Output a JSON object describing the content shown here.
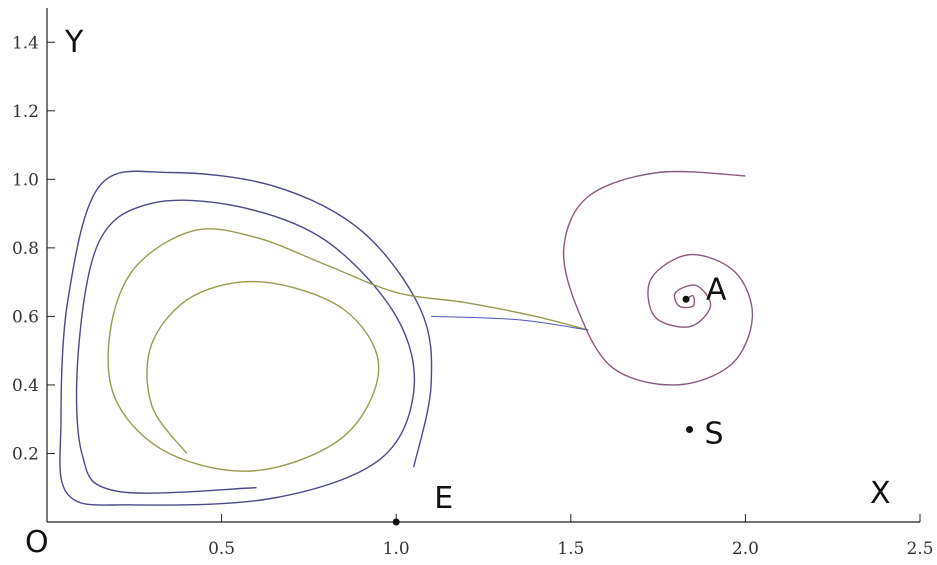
{
  "chart_data": {
    "type": "line",
    "title": "",
    "xlabel": "X",
    "ylabel": "Y",
    "origin_label": "O",
    "xlim": [
      0,
      2.5
    ],
    "ylim": [
      0,
      1.5
    ],
    "x_ticks": [
      {
        "value": 0.5,
        "label": "0.5"
      },
      {
        "value": 1.0,
        "label": "1.0"
      },
      {
        "value": 1.5,
        "label": "1.5"
      },
      {
        "value": 2.0,
        "label": "2.0"
      },
      {
        "value": 2.5,
        "label": "2.5"
      }
    ],
    "y_ticks": [
      {
        "value": 0.2,
        "label": "0.2"
      },
      {
        "value": 0.4,
        "label": "0.4"
      },
      {
        "value": 0.6,
        "label": "0.6"
      },
      {
        "value": 0.8,
        "label": "0.8"
      },
      {
        "value": 1.0,
        "label": "1.0"
      },
      {
        "value": 1.2,
        "label": "1.2"
      },
      {
        "value": 1.4,
        "label": "1.4"
      }
    ],
    "points": [
      {
        "label": "A",
        "x": 1.83,
        "y": 0.65
      },
      {
        "label": "S",
        "x": 1.84,
        "y": 0.27
      },
      {
        "label": "E",
        "x": 1.0,
        "y": 0.0
      }
    ],
    "series": [
      {
        "color": "#4a4a8c",
        "values": [
          [
            1.05,
            0.16
          ],
          [
            1.1,
            0.4
          ],
          [
            1.07,
            0.62
          ],
          [
            0.9,
            0.85
          ],
          [
            0.65,
            0.98
          ],
          [
            0.35,
            1.02
          ],
          [
            0.15,
            0.98
          ],
          [
            0.06,
            0.65
          ],
          [
            0.04,
            0.3
          ],
          [
            0.06,
            0.08
          ],
          [
            0.25,
            0.05
          ],
          [
            0.65,
            0.07
          ],
          [
            0.95,
            0.18
          ],
          [
            1.05,
            0.38
          ],
          [
            1.0,
            0.6
          ],
          [
            0.8,
            0.82
          ],
          [
            0.55,
            0.92
          ],
          [
            0.3,
            0.93
          ],
          [
            0.15,
            0.82
          ],
          [
            0.09,
            0.5
          ],
          [
            0.1,
            0.2
          ],
          [
            0.2,
            0.09
          ],
          [
            0.6,
            0.1
          ]
        ]
      },
      {
        "color": "#9a9a50",
        "values": [
          [
            1.55,
            0.56
          ],
          [
            1.4,
            0.6
          ],
          [
            1.2,
            0.64
          ],
          [
            1.0,
            0.67
          ],
          [
            0.8,
            0.75
          ],
          [
            0.6,
            0.83
          ],
          [
            0.42,
            0.85
          ],
          [
            0.25,
            0.74
          ],
          [
            0.18,
            0.55
          ],
          [
            0.2,
            0.35
          ],
          [
            0.35,
            0.2
          ],
          [
            0.6,
            0.15
          ],
          [
            0.85,
            0.25
          ],
          [
            0.95,
            0.45
          ],
          [
            0.85,
            0.62
          ],
          [
            0.62,
            0.7
          ],
          [
            0.42,
            0.66
          ],
          [
            0.3,
            0.52
          ],
          [
            0.3,
            0.34
          ],
          [
            0.4,
            0.2
          ]
        ]
      },
      {
        "color": "#8a5a7e",
        "values": [
          [
            2.0,
            1.01
          ],
          [
            1.75,
            1.02
          ],
          [
            1.55,
            0.95
          ],
          [
            1.48,
            0.8
          ],
          [
            1.52,
            0.62
          ],
          [
            1.62,
            0.45
          ],
          [
            1.8,
            0.4
          ],
          [
            1.96,
            0.46
          ],
          [
            2.02,
            0.6
          ],
          [
            1.97,
            0.73
          ],
          [
            1.84,
            0.78
          ],
          [
            1.73,
            0.71
          ],
          [
            1.74,
            0.6
          ],
          [
            1.84,
            0.57
          ],
          [
            1.9,
            0.63
          ],
          [
            1.86,
            0.69
          ],
          [
            1.8,
            0.67
          ],
          [
            1.81,
            0.63
          ],
          [
            1.85,
            0.63
          ],
          [
            1.85,
            0.66
          ],
          [
            1.83,
            0.65
          ]
        ]
      }
    ],
    "stripe_series": [
      {
        "color": "#5555bb",
        "values": [
          [
            1.55,
            0.56
          ],
          [
            1.35,
            0.59
          ],
          [
            1.1,
            0.6
          ]
        ]
      }
    ]
  }
}
